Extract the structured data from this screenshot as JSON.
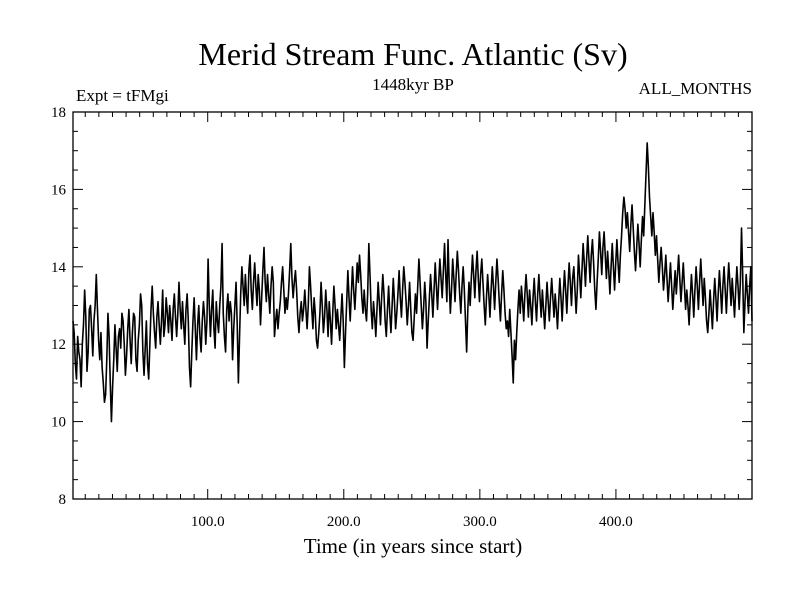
{
  "chart_data": {
    "type": "line",
    "title": "Merid Stream Func. Atlantic (Sv)",
    "subtitle": "1448kyr BP",
    "left_label": "Expt = tFMgi",
    "right_label": "ALL_MONTHS",
    "xlabel": "Time (in years since start)",
    "ylabel": "",
    "xlim": [
      1,
      500
    ],
    "ylim": [
      8,
      18
    ],
    "x_ticks": [
      100,
      200,
      300,
      400
    ],
    "x_tick_labels": [
      "100.0",
      "200.0",
      "300.0",
      "400.0"
    ],
    "y_ticks": [
      8,
      10,
      12,
      14,
      16,
      18
    ],
    "y_tick_labels": [
      "8",
      "10",
      "12",
      "14",
      "16",
      "18"
    ],
    "grid": false,
    "line_color": "#000000",
    "series": [
      {
        "name": "Merid Stream Func. Atlantic",
        "values": [
          12.6,
          12.3,
          11.5,
          11.1,
          12.2,
          11.8,
          11.6,
          10.9,
          12.0,
          12.5,
          13.4,
          12.7,
          11.3,
          11.8,
          12.9,
          13.0,
          12.4,
          11.7,
          12.6,
          13.0,
          13.8,
          12.9,
          12.1,
          11.6,
          12.3,
          11.4,
          11.0,
          10.5,
          10.7,
          11.6,
          12.8,
          12.2,
          11.0,
          10.0,
          10.9,
          11.6,
          12.5,
          11.9,
          11.3,
          12.2,
          12.4,
          11.9,
          12.8,
          12.6,
          12.0,
          11.2,
          11.7,
          12.4,
          12.9,
          12.1,
          11.5,
          12.3,
          12.8,
          12.7,
          11.6,
          11.3,
          12.1,
          12.5,
          13.3,
          13.0,
          11.8,
          11.2,
          11.9,
          12.6,
          11.5,
          11.1,
          12.0,
          12.9,
          13.5,
          12.8,
          12.3,
          11.9,
          12.7,
          13.1,
          12.5,
          12.0,
          12.6,
          13.4,
          12.2,
          12.5,
          13.2,
          12.8,
          12.3,
          13.0,
          12.6,
          12.1,
          12.9,
          13.3,
          12.7,
          12.2,
          12.8,
          13.6,
          12.9,
          12.4,
          13.1,
          12.5,
          12.0,
          12.9,
          13.3,
          12.6,
          11.4,
          10.9,
          11.8,
          12.6,
          13.2,
          12.4,
          11.6,
          12.5,
          13.0,
          12.2,
          11.8,
          12.6,
          13.1,
          12.7,
          12.0,
          12.6,
          14.2,
          13.0,
          12.2,
          12.9,
          13.4,
          12.4,
          11.9,
          13.1,
          12.6,
          12.3,
          13.0,
          13.5,
          14.6,
          12.8,
          12.2,
          11.8,
          12.9,
          13.3,
          12.6,
          13.1,
          12.8,
          11.6,
          12.4,
          13.0,
          13.6,
          12.5,
          11.0,
          12.2,
          13.3,
          14.0,
          13.5,
          13.0,
          13.8,
          13.2,
          12.8,
          13.9,
          14.3,
          13.4,
          12.9,
          13.6,
          14.1,
          13.5,
          13.0,
          13.8,
          13.4,
          12.5,
          13.2,
          13.9,
          14.5,
          13.6,
          13.1,
          13.8,
          13.3,
          12.8,
          13.5,
          14.0,
          13.6,
          12.2,
          12.6,
          12.9,
          12.4,
          12.8,
          13.1,
          13.6,
          14.0,
          13.4,
          12.8,
          13.2,
          12.9,
          13.3,
          13.9,
          14.6,
          13.7,
          13.2,
          13.6,
          13.9,
          13.4,
          12.7,
          12.3,
          12.8,
          13.1,
          12.6,
          12.9,
          13.4,
          12.9,
          12.4,
          13.0,
          14.0,
          13.5,
          12.9,
          12.4,
          13.2,
          12.8,
          12.1,
          11.9,
          12.3,
          12.8,
          13.6,
          13.0,
          12.3,
          12.7,
          13.4,
          12.9,
          12.2,
          13.1,
          12.6,
          12.0,
          12.8,
          13.5,
          13.0,
          12.4,
          12.9,
          12.5,
          12.1,
          12.7,
          13.3,
          12.6,
          11.4,
          12.3,
          13.1,
          13.9,
          13.2,
          12.6,
          13.3,
          14.0,
          13.4,
          12.9,
          13.5,
          14.1,
          13.6,
          14.3,
          13.8,
          13.2,
          12.8,
          13.4,
          12.9,
          12.6,
          13.3,
          14.6,
          13.8,
          12.9,
          12.4,
          13.1,
          12.7,
          12.2,
          12.9,
          13.6,
          13.1,
          12.5,
          13.2,
          13.8,
          13.3,
          12.6,
          12.2,
          12.9,
          13.5,
          12.8,
          12.3,
          13.0,
          13.7,
          13.1,
          12.4,
          12.8,
          13.3,
          13.9,
          13.2,
          12.7,
          13.4,
          14.0,
          13.6,
          13.1,
          12.5,
          13.0,
          13.6,
          12.9,
          12.3,
          12.1,
          12.7,
          13.3,
          12.8,
          13.5,
          14.2,
          13.6,
          13.0,
          12.4,
          12.9,
          13.6,
          13.1,
          11.9,
          12.6,
          13.2,
          13.8,
          13.3,
          12.7,
          13.4,
          14.1,
          13.5,
          12.9,
          13.6,
          14.2,
          13.7,
          13.2,
          13.9,
          14.6,
          13.8,
          13.1,
          14.7,
          13.6,
          12.8,
          13.4,
          14.2,
          13.7,
          13.1,
          13.8,
          14.4,
          13.9,
          13.3,
          12.8,
          13.5,
          14.0,
          13.4,
          12.6,
          11.8,
          12.9,
          13.6,
          13.0,
          13.7,
          14.3,
          13.8,
          13.2,
          13.9,
          14.4,
          13.7,
          13.1,
          13.8,
          14.2,
          13.6,
          13.0,
          12.5,
          13.2,
          13.8,
          13.3,
          12.7,
          13.4,
          14.0,
          13.5,
          12.9,
          13.6,
          14.2,
          13.7,
          13.1,
          12.6,
          13.3,
          13.9,
          13.4,
          12.8,
          12.4,
          12.6,
          12.2,
          12.9,
          12.3,
          11.7,
          11.0,
          12.1,
          11.6,
          12.3,
          12.9,
          13.4,
          12.8,
          13.5,
          13.1,
          12.6,
          13.3,
          13.8,
          13.3,
          12.7,
          13.4,
          13.0,
          12.5,
          13.2,
          13.7,
          13.1,
          12.6,
          13.3,
          13.8,
          13.2,
          12.7,
          13.4,
          12.9,
          12.4,
          13.0,
          13.6,
          13.1,
          12.6,
          13.2,
          13.7,
          13.2,
          12.7,
          13.3,
          12.9,
          12.4,
          13.1,
          13.7,
          13.2,
          12.6,
          13.3,
          13.9,
          13.4,
          12.8,
          13.5,
          14.1,
          13.6,
          13.0,
          13.7,
          14.0,
          13.4,
          12.8,
          13.4,
          14.3,
          13.8,
          13.2,
          13.9,
          14.6,
          14.1,
          13.5,
          14.2,
          14.8,
          14.2,
          13.6,
          14.3,
          14.7,
          14.1,
          13.4,
          12.9,
          13.6,
          14.2,
          14.9,
          14.4,
          13.8,
          14.5,
          14.9,
          14.3,
          13.7,
          14.4,
          13.9,
          13.3,
          14.0,
          14.6,
          14.0,
          13.4,
          14.1,
          14.7,
          14.1,
          13.6,
          14.3,
          14.8,
          15.4,
          15.8,
          15.5,
          15.0,
          15.4,
          14.9,
          14.4,
          15.1,
          15.6,
          15.0,
          14.4,
          13.9,
          14.5,
          15.1,
          14.6,
          14.0,
          14.7,
          15.3,
          14.8,
          15.6,
          16.4,
          17.2,
          16.6,
          15.8,
          15.3,
          14.8,
          15.4,
          14.9,
          14.3,
          14.8,
          14.2,
          13.6,
          14.1,
          14.5,
          14.0,
          13.4,
          13.8,
          14.3,
          13.7,
          13.1,
          13.6,
          14.1,
          13.5,
          12.9,
          13.4,
          13.9,
          13.3,
          13.8,
          14.3,
          13.7,
          13.1,
          13.6,
          14.1,
          13.5,
          12.9,
          13.4,
          13.0,
          12.5,
          13.2,
          13.8,
          13.3,
          12.7,
          13.4,
          14.0,
          13.5,
          12.9,
          13.6,
          14.2,
          13.6,
          13.0,
          13.7,
          13.2,
          12.6,
          12.3,
          12.8,
          13.4,
          12.9,
          12.4,
          13.1,
          13.7,
          13.2,
          12.6,
          13.3,
          13.9,
          13.4,
          12.8,
          13.5,
          14.0,
          13.4,
          12.8,
          13.5,
          14.1,
          13.6,
          13.0,
          13.7,
          13.2,
          12.7,
          13.4,
          14.0,
          13.5,
          12.9,
          13.6,
          15.0,
          13.8,
          12.3,
          13.1,
          13.8,
          13.3,
          12.8,
          13.5,
          14.0,
          12.6
        ]
      }
    ]
  }
}
